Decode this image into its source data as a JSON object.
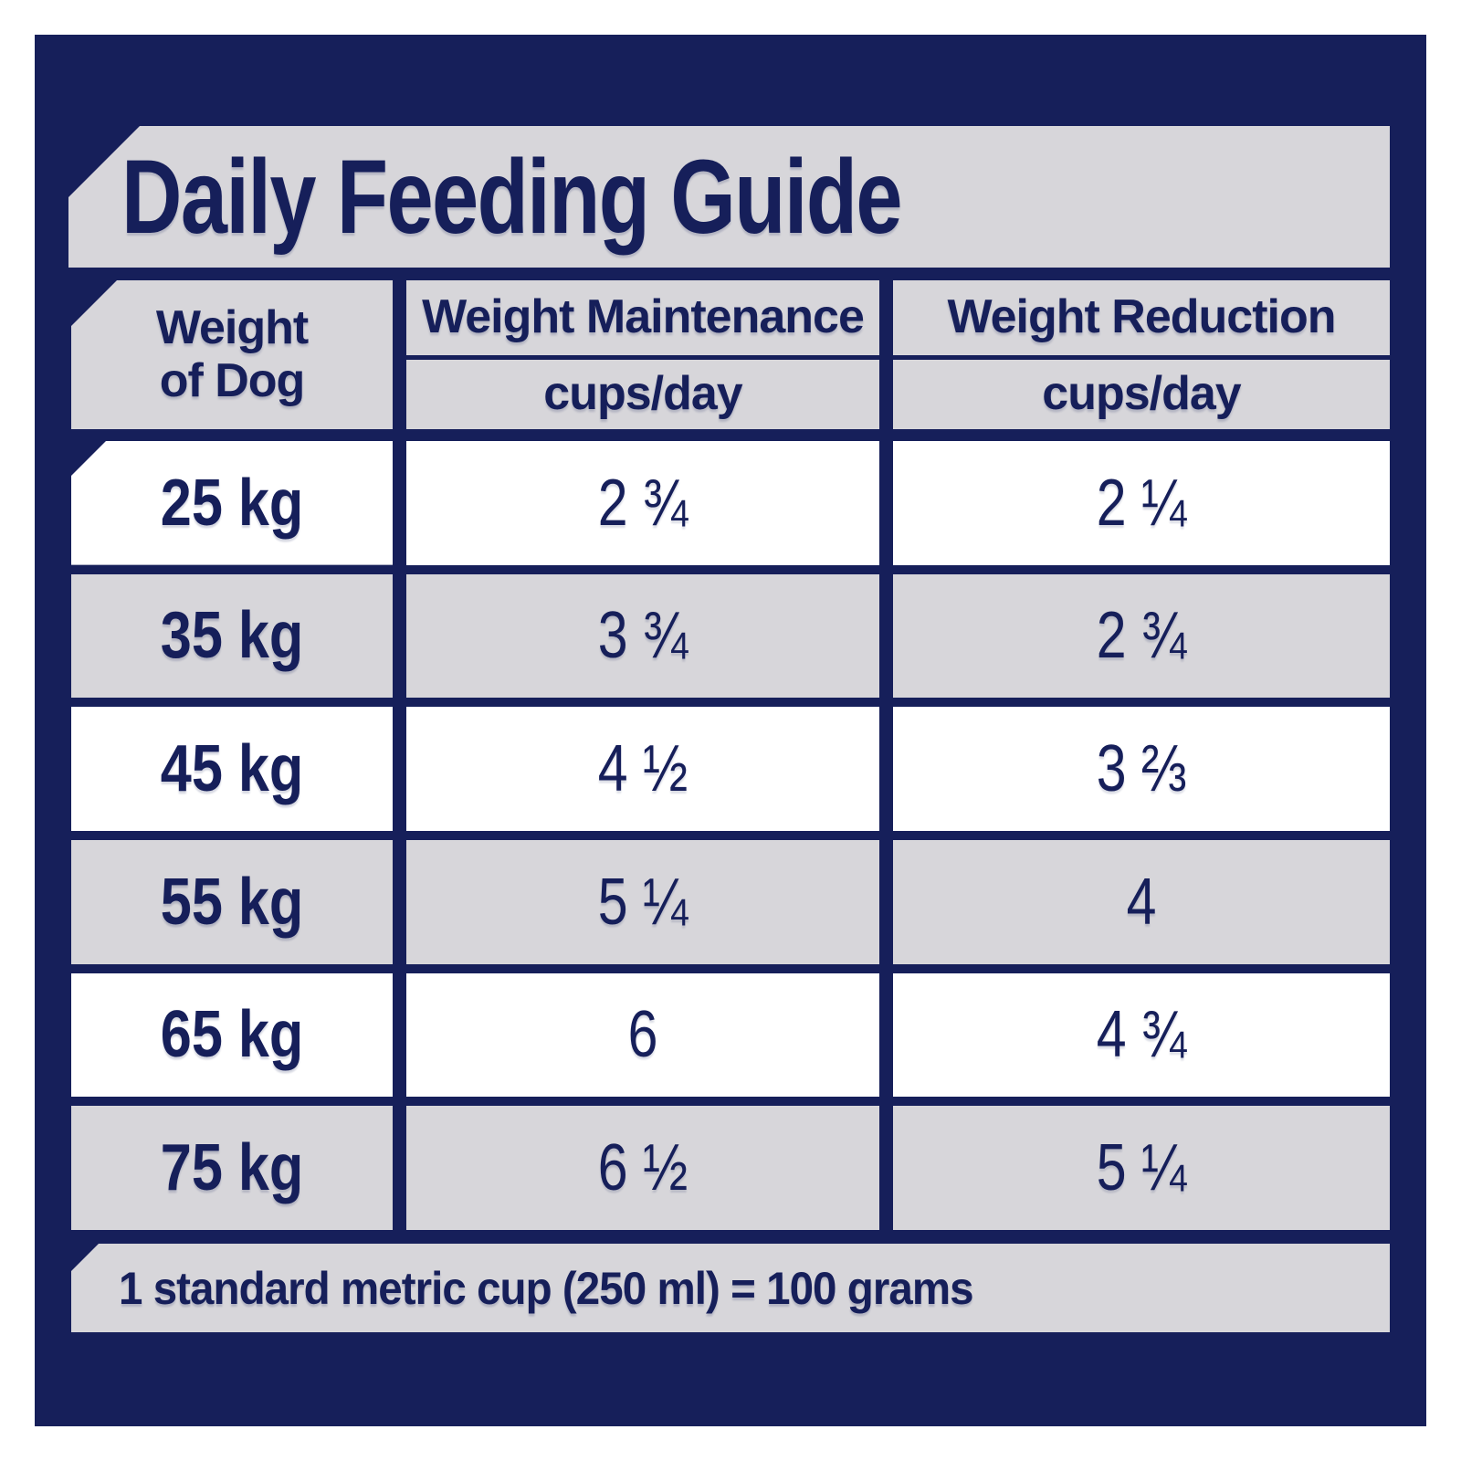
{
  "content": {
    "title": "Daily Feeding Guide",
    "headers": {
      "weight_line1": "Weight",
      "weight_line2": "of Dog",
      "maintenance": "Weight Maintenance",
      "maintenance_units": "cups/day",
      "reduction": "Weight Reduction",
      "reduction_units": "cups/day"
    },
    "rows": [
      {
        "weight": "25 kg",
        "maintenance": "2 ¾",
        "reduction": "2 ¼"
      },
      {
        "weight": "35 kg",
        "maintenance": "3 ¾",
        "reduction": "2 ¾"
      },
      {
        "weight": "45 kg",
        "maintenance": "4 ½",
        "reduction": "3 ⅔"
      },
      {
        "weight": "55 kg",
        "maintenance": "5 ¼",
        "reduction": "4"
      },
      {
        "weight": "65 kg",
        "maintenance": "6",
        "reduction": "4 ¾"
      },
      {
        "weight": "75 kg",
        "maintenance": "6 ½",
        "reduction": "5 ¼"
      }
    ],
    "footer_note": "1 standard metric cup (250 ml) = 100 grams"
  },
  "chart_data": {
    "type": "table",
    "title": "Daily Feeding Guide",
    "columns": [
      "Weight of Dog",
      "Weight Maintenance (cups/day)",
      "Weight Reduction (cups/day)"
    ],
    "rows": [
      [
        "25 kg",
        "2 ¾",
        "2 ¼"
      ],
      [
        "35 kg",
        "3 ¾",
        "2 ¾"
      ],
      [
        "45 kg",
        "4 ½",
        "3 ⅔"
      ],
      [
        "55 kg",
        "5 ¼",
        "4"
      ],
      [
        "65 kg",
        "6",
        "4 ¾"
      ],
      [
        "75 kg",
        "6 ½",
        "5 ¼"
      ]
    ],
    "weights_kg": [
      25,
      35,
      45,
      55,
      65,
      75
    ],
    "maintenance_cups_per_day": [
      2.75,
      3.75,
      4.5,
      5.25,
      6,
      6.5
    ],
    "reduction_cups_per_day": [
      2.25,
      2.75,
      3.67,
      4,
      4.75,
      5.25
    ],
    "note": "1 standard metric cup (250 ml) = 100 grams"
  },
  "colors": {
    "navy": "#161f5a",
    "light_gray": "#d7d6da",
    "white": "#ffffff",
    "text": "#161f5a"
  }
}
